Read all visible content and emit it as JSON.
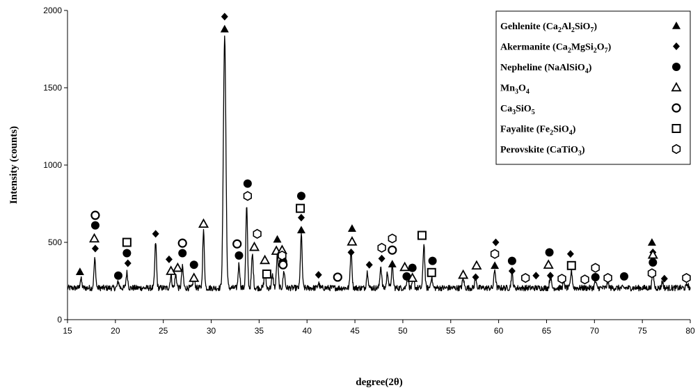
{
  "chart_data": {
    "type": "line",
    "title": "",
    "xlabel": "degree(2θ)",
    "ylabel": "Intensity (counts)",
    "xlim": [
      15,
      80
    ],
    "ylim": [
      0,
      2000
    ],
    "xticks": [
      15,
      20,
      25,
      30,
      35,
      40,
      45,
      50,
      55,
      60,
      65,
      70,
      75,
      80
    ],
    "yticks": [
      0,
      500,
      1000,
      1500,
      2000
    ],
    "grid": false,
    "legend_position": "top-right",
    "baseline": 205,
    "peaks": [
      [
        16.4,
        265
      ],
      [
        17.85,
        390
      ],
      [
        20.3,
        245
      ],
      [
        21.2,
        305
      ],
      [
        24.2,
        500
      ],
      [
        25.8,
        285
      ],
      [
        26.3,
        290
      ],
      [
        27.0,
        340
      ],
      [
        28.2,
        290
      ],
      [
        29.2,
        570
      ],
      [
        31.4,
        1840
      ],
      [
        32.9,
        360
      ],
      [
        33.7,
        730
      ],
      [
        34.3,
        420
      ],
      [
        35.6,
        300
      ],
      [
        36.4,
        285
      ],
      [
        36.9,
        420
      ],
      [
        37.6,
        315
      ],
      [
        39.4,
        550
      ],
      [
        41.2,
        235
      ],
      [
        44.6,
        455
      ],
      [
        46.3,
        310
      ],
      [
        47.7,
        345
      ],
      [
        48.4,
        305
      ],
      [
        48.9,
        345
      ],
      [
        50.5,
        295
      ],
      [
        51.1,
        265
      ],
      [
        52.2,
        490
      ],
      [
        53.0,
        275
      ],
      [
        56.3,
        265
      ],
      [
        57.6,
        280
      ],
      [
        59.6,
        325
      ],
      [
        61.4,
        300
      ],
      [
        65.4,
        280
      ],
      [
        66.8,
        240
      ],
      [
        67.6,
        315
      ],
      [
        70.1,
        245
      ],
      [
        71.4,
        245
      ],
      [
        76.1,
        315
      ],
      [
        77.1,
        245
      ],
      [
        79.7,
        230
      ]
    ],
    "series": [
      {
        "name": "Gehlenite (Ca2Al2SiO7)",
        "marker": "filled-triangle",
        "points": [
          [
            16.3,
            310
          ],
          [
            31.4,
            1880
          ],
          [
            36.9,
            520
          ],
          [
            39.4,
            580
          ],
          [
            44.7,
            590
          ],
          [
            48.9,
            360
          ],
          [
            59.6,
            350
          ],
          [
            76.0,
            500
          ]
        ]
      },
      {
        "name": "Akermanite (Ca2MgSi2O7)",
        "marker": "filled-diamond",
        "points": [
          [
            17.9,
            460
          ],
          [
            21.3,
            365
          ],
          [
            24.2,
            555
          ],
          [
            25.6,
            390
          ],
          [
            31.4,
            1960
          ],
          [
            37.5,
            395
          ],
          [
            39.4,
            660
          ],
          [
            41.2,
            290
          ],
          [
            44.6,
            435
          ],
          [
            46.5,
            355
          ],
          [
            47.8,
            395
          ],
          [
            57.6,
            275
          ],
          [
            59.7,
            500
          ],
          [
            61.4,
            315
          ],
          [
            63.9,
            285
          ],
          [
            65.4,
            285
          ],
          [
            67.5,
            425
          ],
          [
            76.1,
            435
          ],
          [
            77.3,
            265
          ]
        ]
      },
      {
        "name": "Nepheline (NaAlSiO4)",
        "marker": "filled-circle",
        "points": [
          [
            17.9,
            610
          ],
          [
            20.3,
            285
          ],
          [
            21.2,
            430
          ],
          [
            27.0,
            430
          ],
          [
            28.2,
            355
          ],
          [
            32.9,
            415
          ],
          [
            33.8,
            880
          ],
          [
            37.5,
            375
          ],
          [
            39.4,
            800
          ],
          [
            50.4,
            280
          ],
          [
            51.0,
            335
          ],
          [
            53.1,
            380
          ],
          [
            61.4,
            380
          ],
          [
            65.3,
            435
          ],
          [
            70.1,
            275
          ],
          [
            73.1,
            280
          ],
          [
            76.1,
            370
          ]
        ]
      },
      {
        "name": "Mn3O4",
        "marker": "open-triangle",
        "points": [
          [
            17.8,
            525
          ],
          [
            25.8,
            315
          ],
          [
            26.5,
            335
          ],
          [
            28.2,
            270
          ],
          [
            29.2,
            620
          ],
          [
            34.5,
            470
          ],
          [
            35.6,
            385
          ],
          [
            36.8,
            445
          ],
          [
            37.4,
            450
          ],
          [
            44.7,
            505
          ],
          [
            50.2,
            340
          ],
          [
            51.0,
            270
          ],
          [
            56.3,
            290
          ],
          [
            57.7,
            350
          ],
          [
            65.2,
            355
          ],
          [
            76.1,
            420
          ]
        ]
      },
      {
        "name": "Ca3SiO5",
        "marker": "open-circle",
        "points": [
          [
            17.9,
            675
          ],
          [
            27.0,
            495
          ],
          [
            32.7,
            490
          ],
          [
            37.5,
            355
          ],
          [
            43.2,
            275
          ],
          [
            48.9,
            450
          ]
        ]
      },
      {
        "name": "Fayalite (Fe2SiO4)",
        "marker": "open-square",
        "points": [
          [
            21.2,
            500
          ],
          [
            35.8,
            295
          ],
          [
            39.3,
            720
          ],
          [
            52.0,
            545
          ],
          [
            53.0,
            305
          ],
          [
            67.6,
            350
          ]
        ]
      },
      {
        "name": "Perovskite (CaTiO3)",
        "marker": "open-hexagon",
        "points": [
          [
            33.8,
            800
          ],
          [
            34.8,
            555
          ],
          [
            37.4,
            415
          ],
          [
            47.8,
            465
          ],
          [
            48.9,
            525
          ],
          [
            59.6,
            425
          ],
          [
            62.8,
            270
          ],
          [
            66.6,
            265
          ],
          [
            69.0,
            260
          ],
          [
            70.1,
            335
          ],
          [
            71.4,
            270
          ],
          [
            76.0,
            300
          ],
          [
            79.6,
            270
          ]
        ]
      }
    ]
  },
  "legend": {
    "items": [
      {
        "label": "Gehlenite (Ca",
        "parts": [
          [
            "Gehlenite (Ca",
            ""
          ],
          [
            "2",
            "sub"
          ],
          [
            "Al",
            ""
          ],
          [
            "2",
            "sub"
          ],
          [
            "SiO",
            ""
          ],
          [
            "7",
            "sub"
          ],
          [
            ")",
            ""
          ]
        ],
        "marker": "filled-triangle"
      },
      {
        "label": "Akermanite (Ca",
        "parts": [
          [
            "Akermanite (Ca",
            ""
          ],
          [
            "2",
            "sub"
          ],
          [
            "MgSi",
            ""
          ],
          [
            "2",
            "sub"
          ],
          [
            "O",
            ""
          ],
          [
            "7",
            "sub"
          ],
          [
            ")",
            ""
          ]
        ],
        "marker": "filled-diamond"
      },
      {
        "label": "Nepheline (NaAlSiO",
        "parts": [
          [
            "Nepheline (NaAlSiO",
            ""
          ],
          [
            "4",
            "sub"
          ],
          [
            ")",
            ""
          ]
        ],
        "marker": "filled-circle"
      },
      {
        "label": "Mn",
        "parts": [
          [
            "Mn",
            ""
          ],
          [
            "3",
            "sub"
          ],
          [
            "O",
            ""
          ],
          [
            "4",
            "sub"
          ]
        ],
        "marker": "open-triangle"
      },
      {
        "label": "Ca",
        "parts": [
          [
            "Ca",
            ""
          ],
          [
            "3",
            "sub"
          ],
          [
            "SiO",
            ""
          ],
          [
            "5",
            "sub"
          ]
        ],
        "marker": "open-circle"
      },
      {
        "label": "Fayalite (Fe",
        "parts": [
          [
            "Fayalite (Fe",
            ""
          ],
          [
            "2",
            "sub"
          ],
          [
            "SiO",
            ""
          ],
          [
            "4",
            "sub"
          ],
          [
            ")",
            ""
          ]
        ],
        "marker": "open-square"
      },
      {
        "label": "Perovskite (CaTiO",
        "parts": [
          [
            "Perovskite (CaTiO",
            ""
          ],
          [
            "3",
            "sub"
          ],
          [
            ")",
            ""
          ]
        ],
        "marker": "open-hexagon"
      }
    ]
  }
}
